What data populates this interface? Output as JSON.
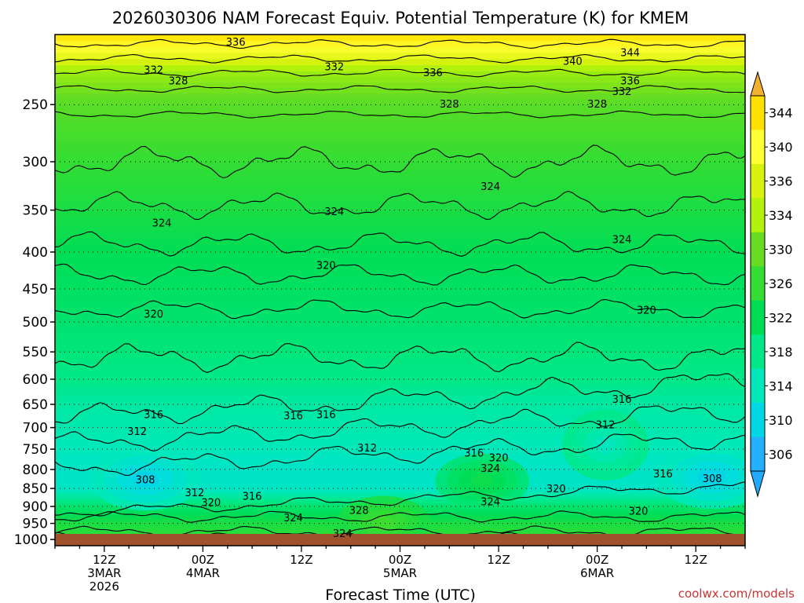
{
  "chart_data": {
    "type": "heatmap",
    "title": "2026030306 NAM Forecast Equiv. Potential Temperature (K) for KMEM",
    "xlabel": "Forecast Time (UTC)",
    "ylabel": "",
    "y_ticks": [
      250,
      300,
      350,
      400,
      450,
      500,
      550,
      600,
      650,
      700,
      750,
      800,
      850,
      900,
      950,
      1000
    ],
    "y_range": [
      200,
      1020
    ],
    "x_range_hours": [
      0,
      84
    ],
    "x_ticks": [
      {
        "hour": 6,
        "lines": [
          "12Z",
          "3MAR",
          "2026"
        ]
      },
      {
        "hour": 18,
        "lines": [
          "00Z",
          "4MAR"
        ]
      },
      {
        "hour": 30,
        "lines": [
          "12Z"
        ]
      },
      {
        "hour": 42,
        "lines": [
          "00Z",
          "5MAR"
        ]
      },
      {
        "hour": 54,
        "lines": [
          "12Z"
        ]
      },
      {
        "hour": 66,
        "lines": [
          "00Z",
          "6MAR"
        ]
      },
      {
        "hour": 78,
        "lines": [
          "12Z"
        ]
      }
    ],
    "colorbar": {
      "unit": "K",
      "ticks": [
        344,
        340,
        336,
        334,
        330,
        326,
        322,
        318,
        314,
        310,
        306
      ],
      "colors": [
        "#ffe000",
        "#ffff33",
        "#d9f20d",
        "#b3f20d",
        "#66dd22",
        "#33dd33",
        "#00dd55",
        "#00e888",
        "#00e8bb",
        "#00d8e8",
        "#22b0ff"
      ],
      "top_arrow_color": "#f0b030",
      "bottom_arrow_color": "#22aaff"
    },
    "profile_mean": [
      {
        "p": 200,
        "theta_e": 344
      },
      {
        "p": 225,
        "theta_e": 333
      },
      {
        "p": 250,
        "theta_e": 329
      },
      {
        "p": 300,
        "theta_e": 326
      },
      {
        "p": 350,
        "theta_e": 324
      },
      {
        "p": 400,
        "theta_e": 322
      },
      {
        "p": 450,
        "theta_e": 321
      },
      {
        "p": 500,
        "theta_e": 320
      },
      {
        "p": 550,
        "theta_e": 319
      },
      {
        "p": 600,
        "theta_e": 318
      },
      {
        "p": 650,
        "theta_e": 316
      },
      {
        "p": 700,
        "theta_e": 315
      },
      {
        "p": 750,
        "theta_e": 314
      },
      {
        "p": 800,
        "theta_e": 313
      },
      {
        "p": 850,
        "theta_e": 313
      },
      {
        "p": 900,
        "theta_e": 320
      },
      {
        "p": 950,
        "theta_e": 324
      },
      {
        "p": 1000,
        "theta_e": 326
      }
    ],
    "cold_pockets": [
      {
        "hour": 11,
        "p": 825,
        "theta_e": 308,
        "label": "308"
      },
      {
        "hour": 80,
        "p": 820,
        "theta_e": 308,
        "label": "308"
      },
      {
        "hour": 67,
        "p": 740,
        "theta_e": 312,
        "label": "312"
      }
    ],
    "warm_pockets": [
      {
        "hour": 40,
        "p": 950,
        "theta_e": 328,
        "label": "328"
      },
      {
        "hour": 52,
        "p": 830,
        "theta_e": 324,
        "label": "324"
      }
    ],
    "contour_labels": [
      {
        "hour": 22,
        "p": 205,
        "text": "336"
      },
      {
        "hour": 12,
        "p": 224,
        "text": "332"
      },
      {
        "hour": 34,
        "p": 222,
        "text": "332"
      },
      {
        "hour": 46,
        "p": 226,
        "text": "336"
      },
      {
        "hour": 63,
        "p": 218,
        "text": "340"
      },
      {
        "hour": 70,
        "p": 212,
        "text": "344"
      },
      {
        "hour": 70,
        "p": 232,
        "text": "336"
      },
      {
        "hour": 69,
        "p": 240,
        "text": "332"
      },
      {
        "hour": 15,
        "p": 232,
        "text": "328"
      },
      {
        "hour": 48,
        "p": 250,
        "text": "328"
      },
      {
        "hour": 66,
        "p": 250,
        "text": "328"
      },
      {
        "hour": 53,
        "p": 325,
        "text": "324"
      },
      {
        "hour": 13,
        "p": 365,
        "text": "324"
      },
      {
        "hour": 34,
        "p": 352,
        "text": "324"
      },
      {
        "hour": 69,
        "p": 385,
        "text": "324"
      },
      {
        "hour": 33,
        "p": 418,
        "text": "320"
      },
      {
        "hour": 12,
        "p": 488,
        "text": "320"
      },
      {
        "hour": 72,
        "p": 482,
        "text": "320"
      },
      {
        "hour": 29,
        "p": 675,
        "text": "316"
      },
      {
        "hour": 33,
        "p": 672,
        "text": "316"
      },
      {
        "hour": 12,
        "p": 672,
        "text": "316"
      },
      {
        "hour": 69,
        "p": 640,
        "text": "316"
      },
      {
        "hour": 51,
        "p": 760,
        "text": "316"
      },
      {
        "hour": 74,
        "p": 812,
        "text": "316"
      },
      {
        "hour": 24,
        "p": 872,
        "text": "316"
      },
      {
        "hour": 10,
        "p": 710,
        "text": "312"
      },
      {
        "hour": 38,
        "p": 748,
        "text": "312"
      },
      {
        "hour": 67,
        "p": 695,
        "text": "312"
      },
      {
        "hour": 17,
        "p": 862,
        "text": "312"
      },
      {
        "hour": 53,
        "p": 798,
        "text": "324"
      },
      {
        "hour": 53,
        "p": 888,
        "text": "324"
      },
      {
        "hour": 29,
        "p": 935,
        "text": "324"
      },
      {
        "hour": 35,
        "p": 982,
        "text": "324"
      },
      {
        "hour": 37,
        "p": 912,
        "text": "328"
      },
      {
        "hour": 54,
        "p": 772,
        "text": "320"
      },
      {
        "hour": 61,
        "p": 852,
        "text": "320"
      },
      {
        "hour": 19,
        "p": 890,
        "text": "320"
      },
      {
        "hour": 71,
        "p": 915,
        "text": "320"
      },
      {
        "hour": 11,
        "p": 828,
        "text": "308"
      },
      {
        "hour": 80,
        "p": 825,
        "text": "308"
      }
    ],
    "ground_color": "#a0522d"
  },
  "watermark": "coolwx.com/models"
}
